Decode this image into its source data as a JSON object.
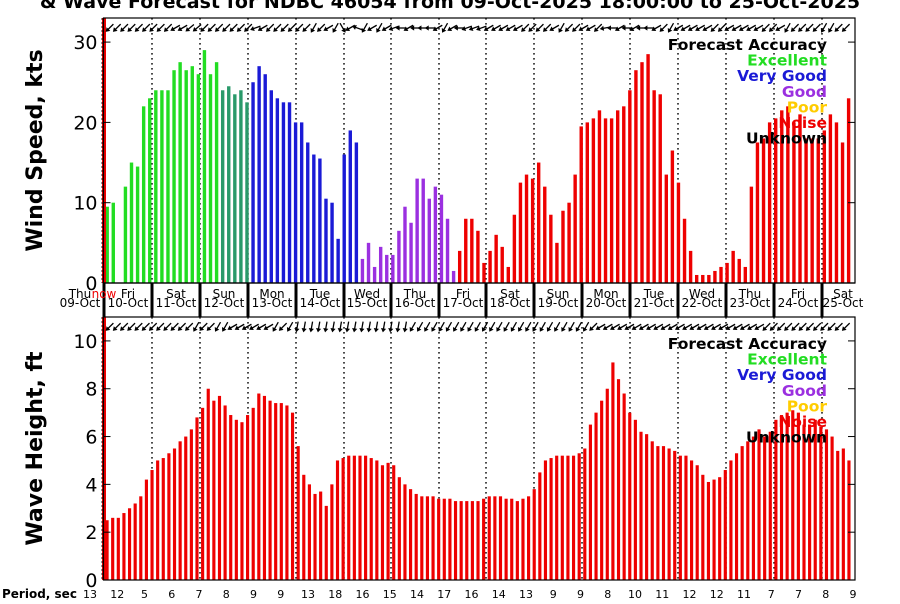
{
  "title": "& Wave Forecast for NDBC 46054 from 09-Oct-2025 18:00:00 to 25-Oct-2025",
  "colors": {
    "excellent": "#22dd22",
    "transition": "#2a9a6a",
    "very_good": "#1a1ad6",
    "good": "#9b30e0",
    "poor": "#ffcc00",
    "noise": "#ee0000",
    "unknown": "#000000",
    "now_line": "#ee0000"
  },
  "now_label": "now",
  "chart_data": [
    {
      "type": "bar",
      "ylabel": "Wind Speed, kts",
      "ylim": [
        0,
        33
      ],
      "yticks": [
        0,
        10,
        20,
        30
      ],
      "grid": "vertical dotted at day boundaries",
      "legend": {
        "placement": "top-right",
        "title": "Forecast Accuracy",
        "entries": [
          "Excellent",
          "Very Good",
          "Good",
          "Poor",
          "Noise",
          "Unknown"
        ]
      },
      "day_labels": [
        {
          "top": "Thu",
          "bottom": "09-Oct"
        },
        {
          "top": "Fri",
          "bottom": "10-Oct"
        },
        {
          "top": "Sat",
          "bottom": "11-Oct"
        },
        {
          "top": "Sun",
          "bottom": "12-Oct"
        },
        {
          "top": "Mon",
          "bottom": "13-Oct"
        },
        {
          "top": "Tue",
          "bottom": "14-Oct"
        },
        {
          "top": "Wed",
          "bottom": "15-Oct"
        },
        {
          "top": "Thu",
          "bottom": "16-Oct"
        },
        {
          "top": "Fri",
          "bottom": "17-Oct"
        },
        {
          "top": "Sat",
          "bottom": "18-Oct"
        },
        {
          "top": "Sun",
          "bottom": "19-Oct"
        },
        {
          "top": "Mon",
          "bottom": "20-Oct"
        },
        {
          "top": "Tue",
          "bottom": "21-Oct"
        },
        {
          "top": "Wed",
          "bottom": "22-Oct"
        },
        {
          "top": "Thu",
          "bottom": "23-Oct"
        },
        {
          "top": "Fri",
          "bottom": "24-Oct"
        },
        {
          "top": "Sat",
          "bottom": "25-Oct"
        }
      ],
      "segments": [
        {
          "accuracy": "excellent",
          "values": [
            9.5,
            10,
            0,
            12,
            15,
            14.5,
            22,
            23,
            24,
            24,
            24,
            26.5,
            27.5,
            26.5,
            27,
            26,
            29,
            26,
            27.5
          ]
        },
        {
          "accuracy": "transition",
          "values": [
            24,
            24.5,
            23.5,
            24,
            22.5
          ]
        },
        {
          "accuracy": "very_good",
          "values": [
            25,
            27,
            26,
            24,
            23,
            22.5,
            22.5,
            20,
            20,
            17.5,
            16,
            15.5,
            10.5,
            10,
            5.5,
            16,
            19,
            17.5
          ]
        },
        {
          "accuracy": "good",
          "values": [
            3,
            5,
            2,
            4.5,
            3.5,
            3.5,
            6.5,
            9.5,
            7.5,
            13,
            13,
            10.5,
            12,
            11,
            8,
            1.5
          ]
        },
        {
          "accuracy": "noise",
          "values": [
            4,
            8,
            8,
            6.5,
            2.5,
            4,
            6,
            4.5,
            2,
            8.5,
            12.5,
            13.5,
            13,
            15,
            12,
            8.5,
            5,
            9,
            10,
            13.5,
            19.5,
            20,
            20.5,
            21.5,
            20.5,
            20.5,
            21.5,
            22,
            24,
            26.5,
            27.5,
            28.5,
            24,
            23.5,
            13.5,
            16.5,
            12.5,
            8,
            4,
            1,
            1,
            1,
            1.5,
            2,
            2.5,
            4,
            3,
            2,
            12,
            17.5,
            18,
            20,
            20.5,
            21.5,
            22,
            20,
            21,
            18,
            18,
            18,
            19,
            21,
            20,
            17.5,
            23
          ]
        }
      ],
      "arrows": [
        135,
        135,
        135,
        135,
        135,
        135,
        135,
        135,
        135,
        150,
        150,
        140,
        140,
        135,
        135,
        135,
        135,
        135,
        135,
        135,
        160,
        150,
        135,
        135,
        135,
        135,
        135,
        135,
        120,
        135,
        150,
        120,
        60,
        150,
        200,
        120,
        150,
        120,
        150,
        160,
        180,
        150,
        180,
        180,
        180,
        150,
        120,
        150,
        180,
        160,
        160,
        160,
        150,
        150,
        150,
        150,
        150,
        135,
        135,
        135,
        135,
        150,
        120,
        135,
        135,
        150,
        150,
        135,
        170,
        180,
        150,
        180,
        150,
        180,
        180,
        150,
        135,
        120,
        150,
        150,
        150,
        150,
        150,
        135,
        135,
        150,
        150,
        150,
        150,
        150,
        135,
        135,
        150,
        120,
        135,
        135,
        135,
        135,
        120,
        120,
        135,
        135
      ]
    },
    {
      "type": "bar",
      "ylabel": "Wave Height, ft",
      "ylim": [
        0,
        11
      ],
      "yticks": [
        0,
        2,
        4,
        6,
        8,
        10
      ],
      "grid": "vertical dotted at day boundaries",
      "legend": {
        "placement": "top-right",
        "title": "Forecast Accuracy",
        "entries": [
          "Excellent",
          "Very Good",
          "Good",
          "Poor",
          "Noise",
          "Unknown"
        ]
      },
      "x_label": "Period, sec",
      "period_labels": [
        "13",
        "12",
        "5",
        "6",
        "7",
        "8",
        "9",
        "9",
        "13",
        "18",
        "16",
        "15",
        "14",
        "17",
        "16",
        "14",
        "13",
        "9",
        "9",
        "8",
        "10",
        "11",
        "12",
        "12",
        "11",
        "7",
        "7",
        "8",
        "9"
      ],
      "segments": [
        {
          "accuracy": "noise",
          "values": [
            2.5,
            2.6,
            2.6,
            2.8,
            3,
            3.2,
            3.5,
            4.2,
            4.6,
            5,
            5.1,
            5.3,
            5.5,
            5.8,
            6,
            6.3,
            6.8,
            7.2,
            8,
            7.5,
            7.7,
            7.3,
            6.9,
            6.7,
            6.6,
            6.9,
            7.2,
            7.8,
            7.7,
            7.5,
            7.4,
            7.4,
            7.3,
            7,
            5.6,
            4.4,
            4,
            3.6,
            3.7,
            3.1,
            4,
            5,
            5.1,
            5.2,
            5.2,
            5.2,
            5.2,
            5.1,
            5,
            4.8,
            4.9,
            4.8,
            4.3,
            4,
            3.8,
            3.6,
            3.5,
            3.5,
            3.5,
            3.4,
            3.4,
            3.4,
            3.3,
            3.3,
            3.3,
            3.3,
            3.3,
            3.4,
            3.5,
            3.5,
            3.5,
            3.4,
            3.4,
            3.3,
            3.4,
            3.5,
            3.8,
            4.5,
            5,
            5.1,
            5.2,
            5.2,
            5.2,
            5.2,
            5.3,
            5.5,
            6.5,
            7,
            7.5,
            8,
            9.1,
            8.4,
            7.8,
            7,
            6.7,
            6.2,
            6.1,
            5.8,
            5.6,
            5.6,
            5.5,
            5.4,
            5.2,
            5.2,
            5,
            4.8,
            4.4,
            4.1,
            4.2,
            4.3,
            4.6,
            5,
            5.3,
            5.6,
            5.8,
            6,
            6.3,
            6,
            6.2,
            6.7,
            6.9,
            7,
            7.1,
            7,
            6.5,
            6.5,
            6.7,
            6.4,
            6.3,
            6,
            5.4,
            5.5,
            5
          ]
        }
      ],
      "arrows": [
        135,
        135,
        135,
        135,
        135,
        135,
        135,
        135,
        135,
        135,
        135,
        135,
        120,
        135,
        135,
        120,
        120,
        150,
        150,
        150,
        150,
        150,
        150,
        120,
        135,
        120,
        100,
        100,
        100,
        100,
        100,
        100,
        100,
        100,
        100,
        100,
        100,
        100,
        100,
        100,
        100,
        100,
        120,
        120,
        120,
        120,
        120,
        120,
        120,
        120,
        120,
        120,
        120,
        120,
        120,
        120,
        120,
        120,
        120,
        120,
        120,
        120,
        120,
        120,
        120,
        120,
        120,
        135,
        150,
        150,
        150,
        150,
        150,
        150,
        150,
        150,
        150,
        150,
        150,
        150,
        150,
        150,
        150,
        150,
        150,
        150,
        150,
        150,
        150,
        150,
        150,
        135,
        135,
        135,
        135,
        135,
        135,
        135,
        135,
        135,
        135,
        135,
        135
      ]
    }
  ]
}
